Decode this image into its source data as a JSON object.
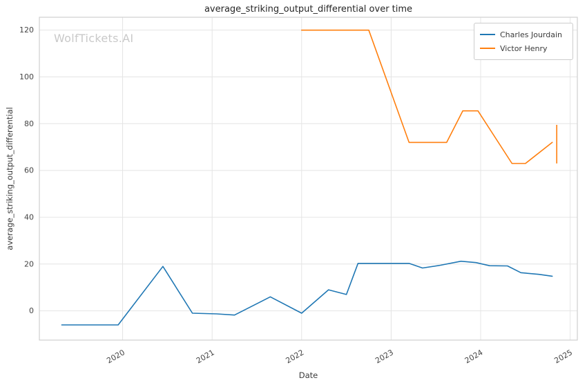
{
  "watermark": "WolfTickets.AI",
  "chart_data": {
    "type": "line",
    "title": "average_striking_output_differential over time",
    "xlabel": "Date",
    "ylabel": "average_striking_output_differential",
    "xlim": [
      2019.07,
      2025.08
    ],
    "ylim": [
      -12.5,
      125.5
    ],
    "xticks": [
      2020,
      2021,
      2022,
      2023,
      2024,
      2025
    ],
    "xticklabels": [
      "2020",
      "2021",
      "2022",
      "2023",
      "2024",
      "2025"
    ],
    "yticks": [
      0,
      20,
      40,
      60,
      80,
      100,
      120
    ],
    "yticklabels": [
      "0",
      "20",
      "40",
      "60",
      "80",
      "100",
      "120"
    ],
    "grid": true,
    "grid_color": "#e4e4e4",
    "spine_color": "#cfcfcf",
    "tick_label_color": "#444444",
    "legend_position": "upper right",
    "series": [
      {
        "name": "Charles Jourdain",
        "color": "#1f77b4",
        "x": [
          2019.32,
          2019.95,
          2020.45,
          2020.78,
          2021.05,
          2021.25,
          2021.65,
          2022.0,
          2022.3,
          2022.5,
          2022.63,
          2022.85,
          2023.2,
          2023.35,
          2023.55,
          2023.78,
          2023.95,
          2024.1,
          2024.3,
          2024.45,
          2024.65,
          2024.8
        ],
        "y": [
          -6,
          -6,
          19,
          -1,
          -1.3,
          -1.8,
          6,
          -1,
          9,
          7,
          20.3,
          20.3,
          20.3,
          18.3,
          19.5,
          21.2,
          20.6,
          19.3,
          19.2,
          16.3,
          15.6,
          14.8
        ]
      },
      {
        "name": "Victor Henry",
        "color": "#ff7f0e",
        "x": [
          2022.0,
          2022.75,
          2023.2,
          2023.62,
          2023.8,
          2023.97,
          2024.35,
          2024.5,
          2024.8
        ],
        "y": [
          120,
          120,
          72,
          72,
          85.5,
          85.5,
          63,
          63,
          72
        ]
      }
    ],
    "extra_segments": [
      {
        "color": "#ff7f0e",
        "x": [
          2024.85,
          2024.85
        ],
        "y": [
          63,
          79.5
        ]
      }
    ]
  }
}
